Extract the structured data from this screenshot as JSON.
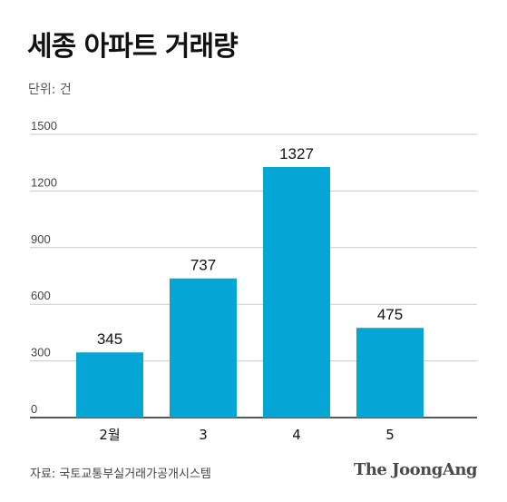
{
  "header": {
    "title": "세종 아파트 거래량",
    "unit": "단위: 건"
  },
  "chart_data": {
    "type": "bar",
    "categories": [
      "2월",
      "3",
      "4",
      "5"
    ],
    "values": [
      345,
      737,
      1327,
      475
    ],
    "ylim": [
      0,
      1500
    ],
    "yticks": [
      0,
      300,
      600,
      900,
      1200,
      1500
    ],
    "ytick_labels": [
      "0",
      "300",
      "600",
      "900",
      "1200",
      "1500"
    ],
    "data_labels": [
      "345",
      "737",
      "1327",
      "475"
    ],
    "grid": true,
    "bar_color": "#05a5d6",
    "grid_color": "#c8c8c8"
  },
  "footer": {
    "source": "자료: 국토교통부실거래가공개시스템",
    "logo": "The JoongAng"
  }
}
